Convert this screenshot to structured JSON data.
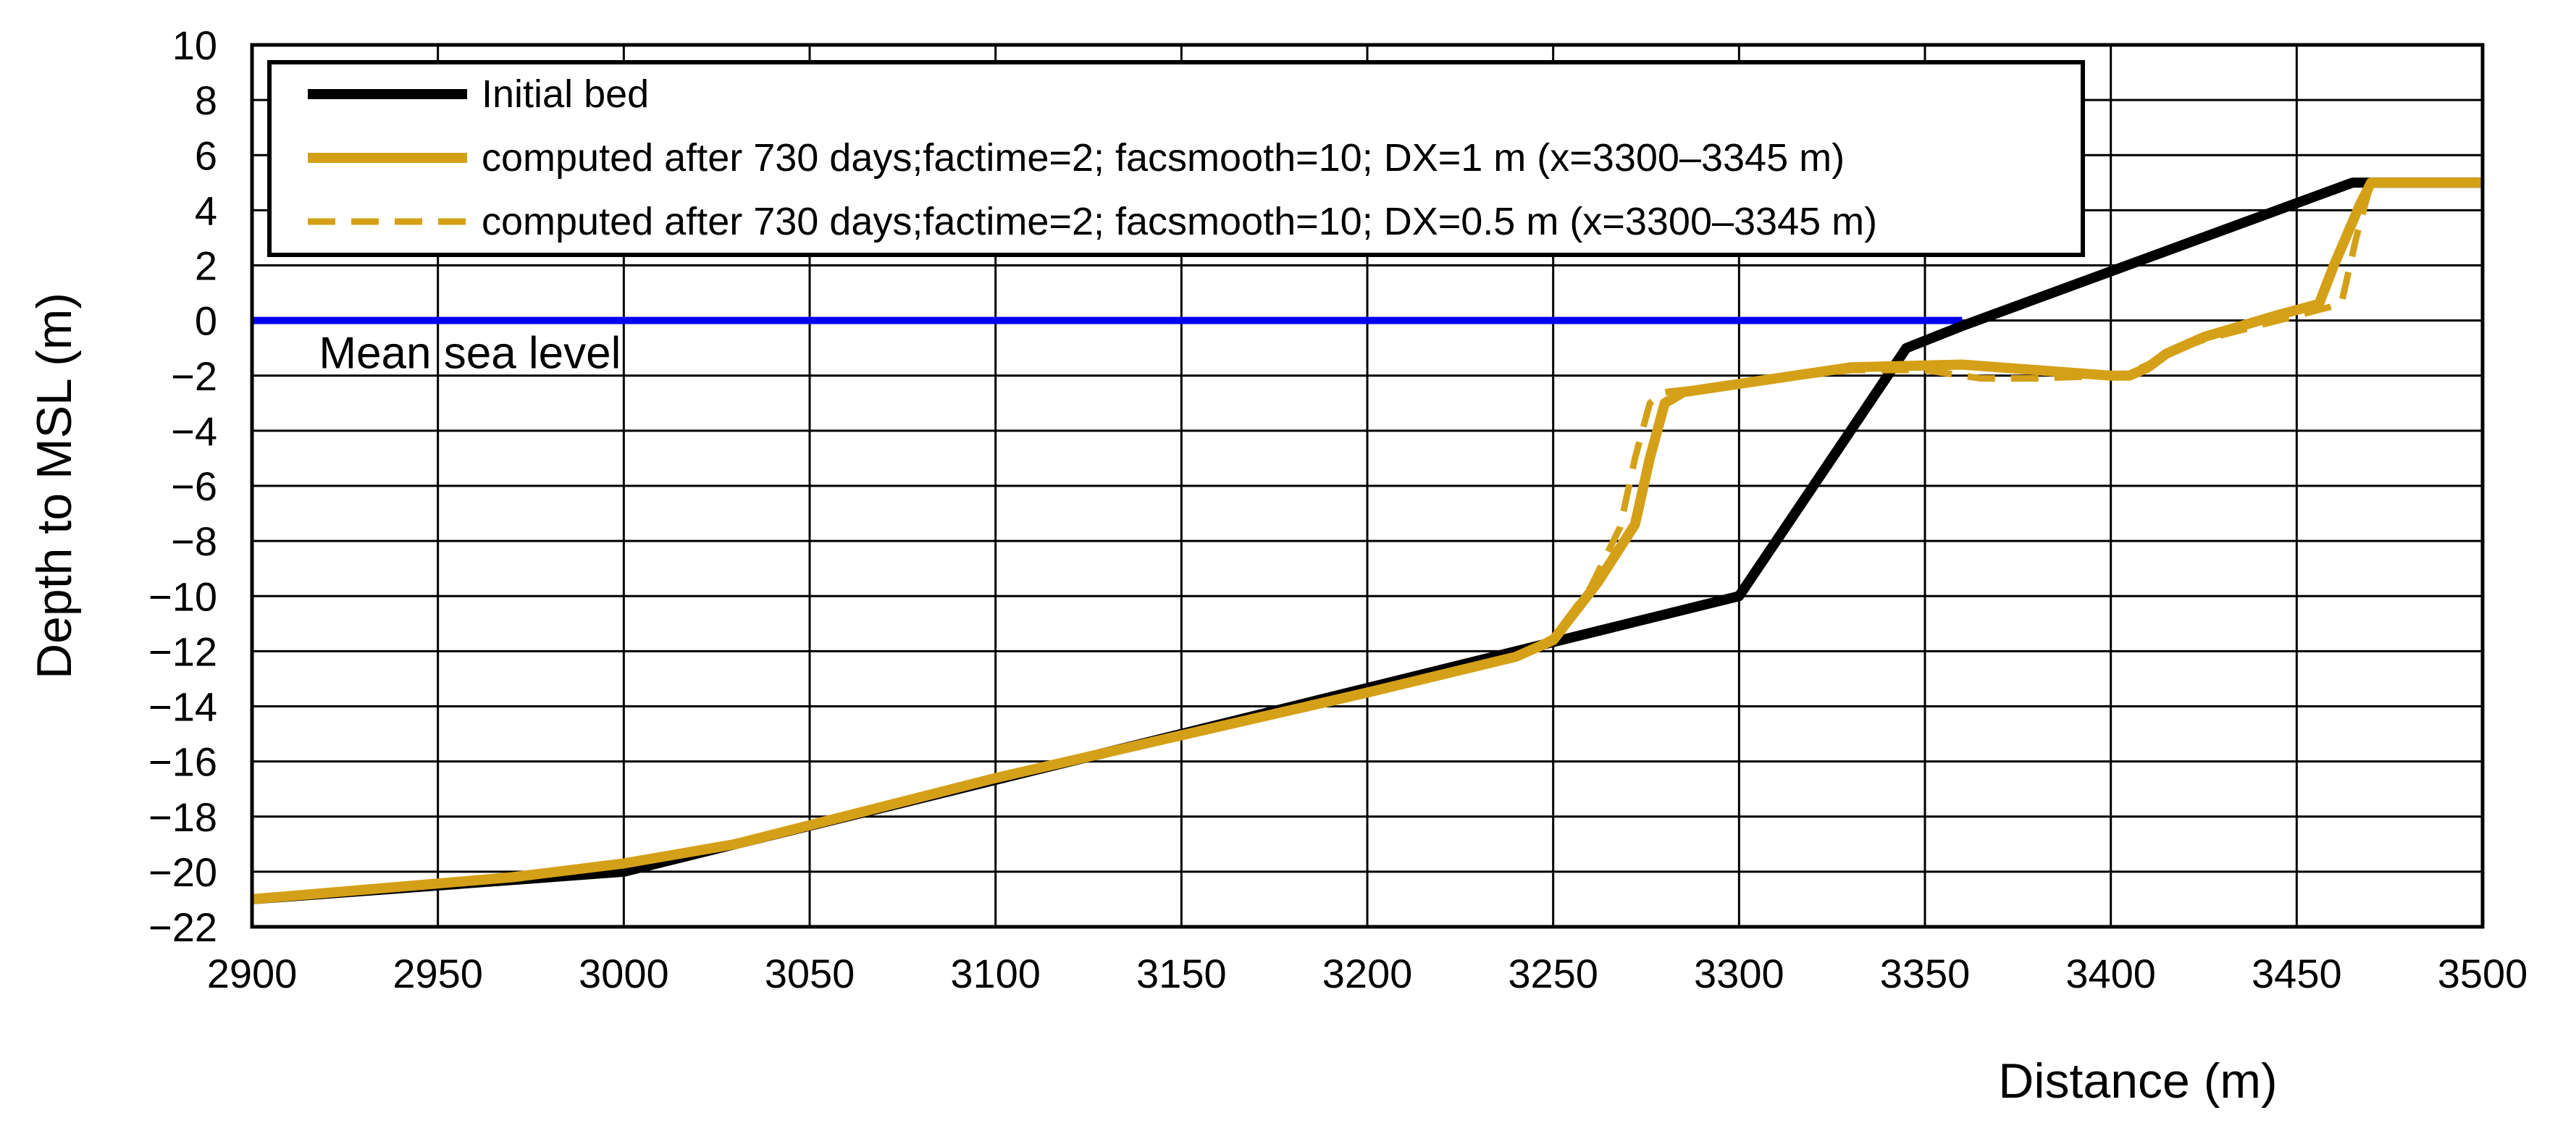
{
  "chart_data": {
    "type": "line",
    "title": "",
    "xlabel": "Distance (m)",
    "ylabel": "Depth to MSL (m)",
    "xlim": [
      2900,
      3500
    ],
    "ylim": [
      -22,
      10
    ],
    "xticks": [
      2900,
      2950,
      3000,
      3050,
      3100,
      3150,
      3200,
      3250,
      3300,
      3350,
      3400,
      3450,
      3500
    ],
    "yticks": [
      10,
      8,
      6,
      4,
      2,
      0,
      -2,
      -4,
      -6,
      -8,
      -10,
      -12,
      -14,
      -16,
      -18,
      -20,
      -22
    ],
    "ytick_labels": [
      "10",
      "8",
      "6",
      "4",
      "2",
      "0",
      "−2",
      "−4",
      "−6",
      "−8",
      "−10",
      "−12",
      "−14",
      "−16",
      "−18",
      "−20",
      "−22"
    ],
    "grid": true,
    "legend_position": "top-left",
    "annotations": [
      {
        "text": "Mean sea level",
        "x": 2918,
        "y": -1.0,
        "color": "#0000ee"
      }
    ],
    "series": [
      {
        "name": "Initial bed",
        "color": "#000000",
        "style": "solid",
        "x": [
          2900,
          3000,
          3300,
          3345,
          3360,
          3465,
          3500
        ],
        "y": [
          -21,
          -20,
          -10,
          -1,
          -0.2,
          5,
          5
        ]
      },
      {
        "name": "computed after 730 days;factime=2; facsmooth=10; DX=1 m (x=3300–3345 m)",
        "color": "#d4a017",
        "style": "solid",
        "x": [
          2900,
          2970,
          3000,
          3030,
          3100,
          3200,
          3240,
          3250,
          3262,
          3272,
          3276,
          3280,
          3285,
          3300,
          3330,
          3360,
          3380,
          3400,
          3405,
          3410,
          3415,
          3425,
          3445,
          3456,
          3460,
          3467,
          3470,
          3500
        ],
        "y": [
          -21,
          -20.2,
          -19.7,
          -19,
          -16.6,
          -13.5,
          -12.2,
          -11.6,
          -9.5,
          -7.4,
          -5,
          -3,
          -2.6,
          -2.3,
          -1.7,
          -1.6,
          -1.8,
          -2.0,
          -2.0,
          -1.7,
          -1.2,
          -0.6,
          0.2,
          0.6,
          2.0,
          4.2,
          5.0,
          5.0
        ]
      },
      {
        "name": "computed after 730 days;factime=2; facsmooth=10; DX=0.5 m (x=3300–3345 m)",
        "color": "#d4a017",
        "style": "dashed",
        "x": [
          2900,
          2970,
          3000,
          3030,
          3100,
          3200,
          3240,
          3250,
          3260,
          3268,
          3272,
          3276,
          3280,
          3300,
          3330,
          3350,
          3365,
          3380,
          3400,
          3405,
          3410,
          3415,
          3425,
          3445,
          3462,
          3466,
          3470,
          3500
        ],
        "y": [
          -21,
          -20.2,
          -19.7,
          -19,
          -16.6,
          -13.5,
          -12.2,
          -11.5,
          -9.7,
          -7.5,
          -5,
          -3,
          -2.6,
          -2.3,
          -1.8,
          -1.8,
          -2.1,
          -2.1,
          -2.0,
          -1.9,
          -1.6,
          -1.2,
          -0.7,
          0,
          0.6,
          3,
          5.0,
          5.0
        ]
      },
      {
        "name": "Mean sea level",
        "color": "#0000ee",
        "style": "solid",
        "x": [
          2900,
          3360
        ],
        "y": [
          0,
          0
        ]
      }
    ]
  }
}
